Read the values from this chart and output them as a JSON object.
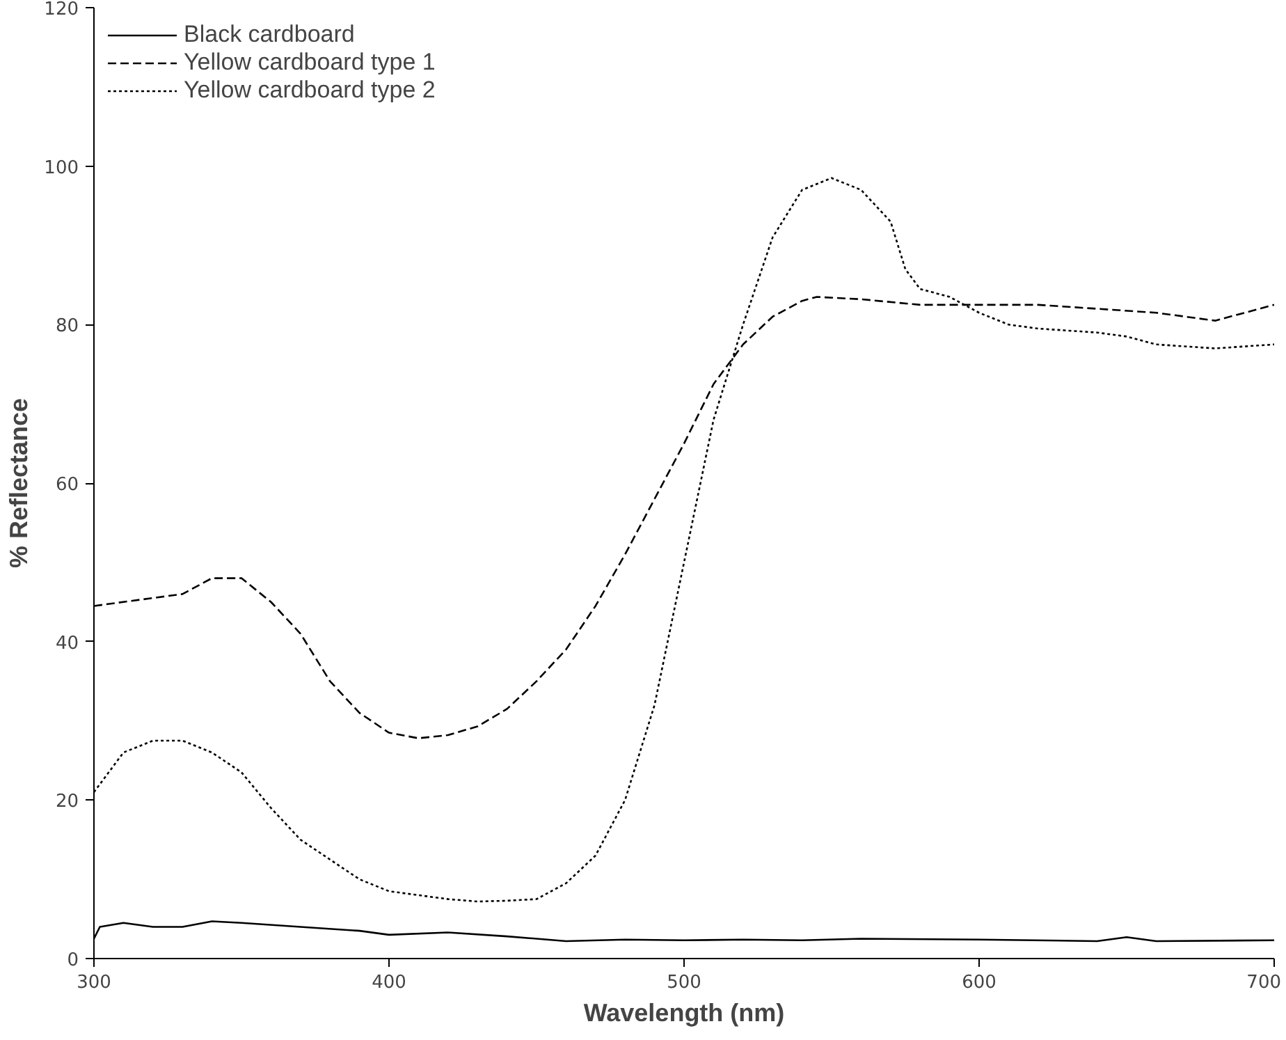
{
  "chart_data": {
    "type": "line",
    "xlabel": "Wavelength (nm)",
    "ylabel": "% Reflectance",
    "xlim": [
      300,
      700
    ],
    "ylim": [
      0,
      120
    ],
    "xticks": [
      300,
      400,
      500,
      600,
      700
    ],
    "yticks": [
      0,
      20,
      40,
      60,
      80,
      100,
      120
    ],
    "grid": false,
    "legend": "top left",
    "marker": "none",
    "series": [
      {
        "name": "Black cardboard",
        "color": "#000000",
        "line_style": "solid",
        "x": [
          300,
          302,
          310,
          320,
          330,
          340,
          350,
          370,
          390,
          400,
          420,
          440,
          460,
          480,
          500,
          520,
          540,
          560,
          600,
          640,
          650,
          660,
          700
        ],
        "values": [
          2.5,
          4,
          4.5,
          4,
          4,
          4.7,
          4.5,
          4,
          3.5,
          3,
          3.3,
          2.8,
          2.2,
          2.4,
          2.3,
          2.4,
          2.3,
          2.5,
          2.4,
          2.2,
          2.7,
          2.2,
          2.3
        ]
      },
      {
        "name": "Yellow cardboard type 1",
        "color": "#000000",
        "line_style": "dashed",
        "x": [
          300,
          320,
          330,
          340,
          350,
          360,
          370,
          380,
          390,
          400,
          410,
          420,
          430,
          440,
          450,
          460,
          470,
          480,
          490,
          500,
          510,
          520,
          530,
          540,
          545,
          560,
          580,
          600,
          620,
          640,
          660,
          680,
          690,
          700
        ],
        "values": [
          44.5,
          45.5,
          46,
          48,
          48,
          45,
          41,
          35,
          31,
          28.5,
          27.8,
          28.2,
          29.3,
          31.5,
          35,
          39,
          44.5,
          51,
          58,
          65,
          72.5,
          77.5,
          81,
          83,
          83.5,
          83.2,
          82.5,
          82.5,
          82.5,
          82,
          81.5,
          80.5,
          81.5,
          82.5
        ]
      },
      {
        "name": "Yellow cardboard type 2",
        "color": "#000000",
        "line_style": "dotted",
        "x": [
          300,
          310,
          320,
          330,
          340,
          350,
          360,
          370,
          380,
          390,
          400,
          410,
          420,
          430,
          440,
          450,
          460,
          470,
          480,
          490,
          500,
          510,
          520,
          530,
          540,
          550,
          560,
          570,
          575,
          580,
          590,
          600,
          610,
          620,
          640,
          650,
          660,
          680,
          700
        ],
        "values": [
          21,
          26,
          27.5,
          27.5,
          26,
          23.5,
          19,
          15,
          12.5,
          10,
          8.5,
          8,
          7.5,
          7.2,
          7.3,
          7.5,
          9.5,
          13,
          20,
          32,
          50,
          68,
          80,
          91,
          97,
          98.5,
          97,
          93,
          87,
          84.5,
          83.5,
          81.5,
          80,
          79.5,
          79,
          78.5,
          77.5,
          77,
          77.5
        ]
      }
    ]
  }
}
